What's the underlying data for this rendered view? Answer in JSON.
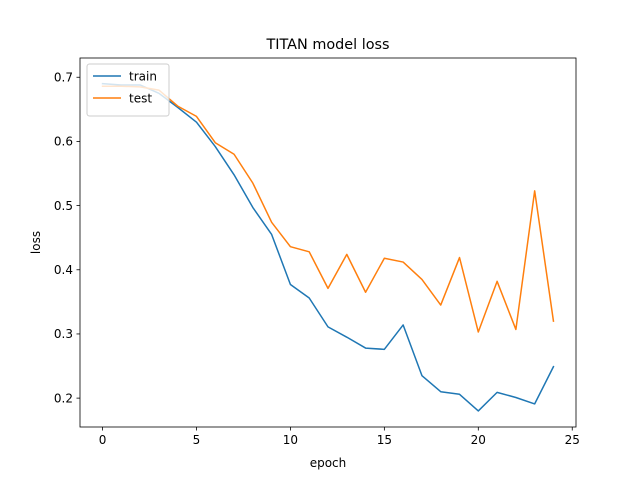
{
  "chart_data": {
    "type": "line",
    "title": "TITAN model loss",
    "xlabel": "epoch",
    "ylabel": "loss",
    "xlim": [
      -1.2,
      25.2
    ],
    "ylim": [
      0.155,
      0.73
    ],
    "xticks": [
      0,
      5,
      10,
      15,
      20,
      25
    ],
    "yticks": [
      0.2,
      0.3,
      0.4,
      0.5,
      0.6,
      0.7
    ],
    "legend_position": "top-left",
    "grid": false,
    "x": [
      0,
      1,
      2,
      3,
      4,
      5,
      6,
      7,
      8,
      9,
      10,
      11,
      12,
      13,
      14,
      15,
      16,
      17,
      18,
      19,
      20,
      21,
      22,
      23,
      24
    ],
    "series": [
      {
        "name": "train",
        "color": "#1f77b4",
        "values": [
          0.69,
          0.688,
          0.688,
          0.675,
          0.653,
          0.63,
          0.592,
          0.548,
          0.497,
          0.455,
          0.377,
          0.356,
          0.311,
          0.295,
          0.278,
          0.276,
          0.314,
          0.235,
          0.21,
          0.206,
          0.18,
          0.209,
          0.201,
          0.191,
          0.249
        ]
      },
      {
        "name": "test",
        "color": "#ff7f0e",
        "values": [
          0.686,
          0.686,
          0.685,
          0.68,
          0.655,
          0.639,
          0.598,
          0.58,
          0.535,
          0.474,
          0.436,
          0.428,
          0.371,
          0.424,
          0.365,
          0.418,
          0.412,
          0.385,
          0.345,
          0.419,
          0.303,
          0.382,
          0.307,
          0.523,
          0.32
        ]
      }
    ]
  }
}
